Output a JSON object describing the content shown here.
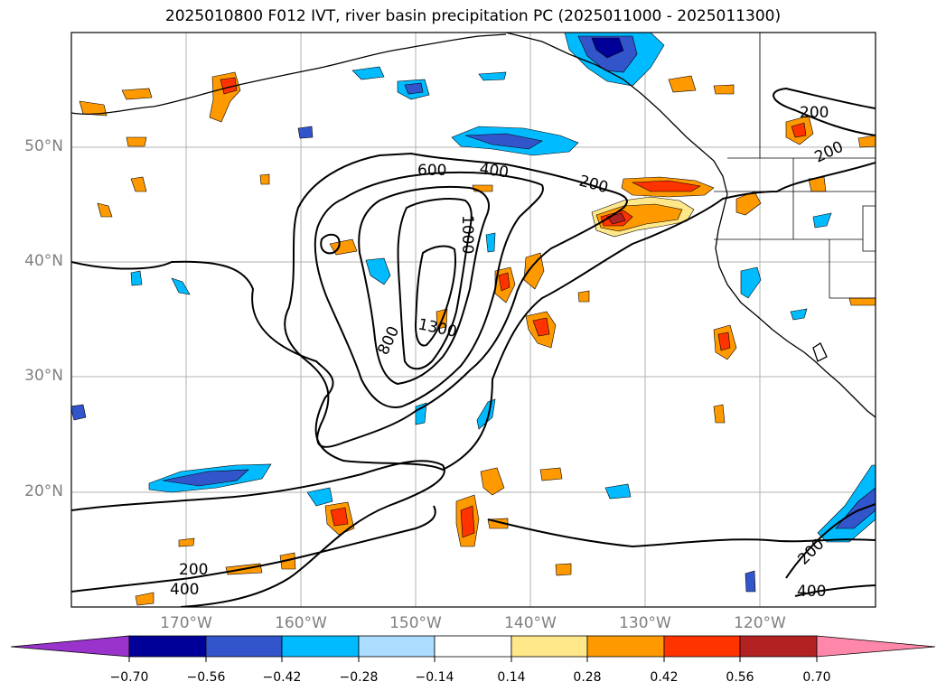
{
  "title": "2025010800 F012 IVT, river basin precipitation PC (2025011000 - 2025011300)",
  "lat_labels": [
    "50°N",
    "40°N",
    "30°N",
    "20°N"
  ],
  "lon_labels": [
    "170°W",
    "160°W",
    "150°W",
    "140°W",
    "130°W",
    "120°W"
  ],
  "contour_labels": [
    "200",
    "400",
    "600",
    "800",
    "1000",
    "1300"
  ],
  "colorbar": {
    "ticks": [
      "−0.70",
      "−0.56",
      "−0.42",
      "−0.28",
      "−0.14",
      "0.14",
      "0.28",
      "0.42",
      "0.56",
      "0.70"
    ],
    "colors": [
      "#9933cc",
      "#000099",
      "#3355cc",
      "#00bbff",
      "#aaddff",
      "#ffffff",
      "#ffe88a",
      "#ff9900",
      "#ff3300",
      "#b22222",
      "#ff88aa"
    ]
  }
}
